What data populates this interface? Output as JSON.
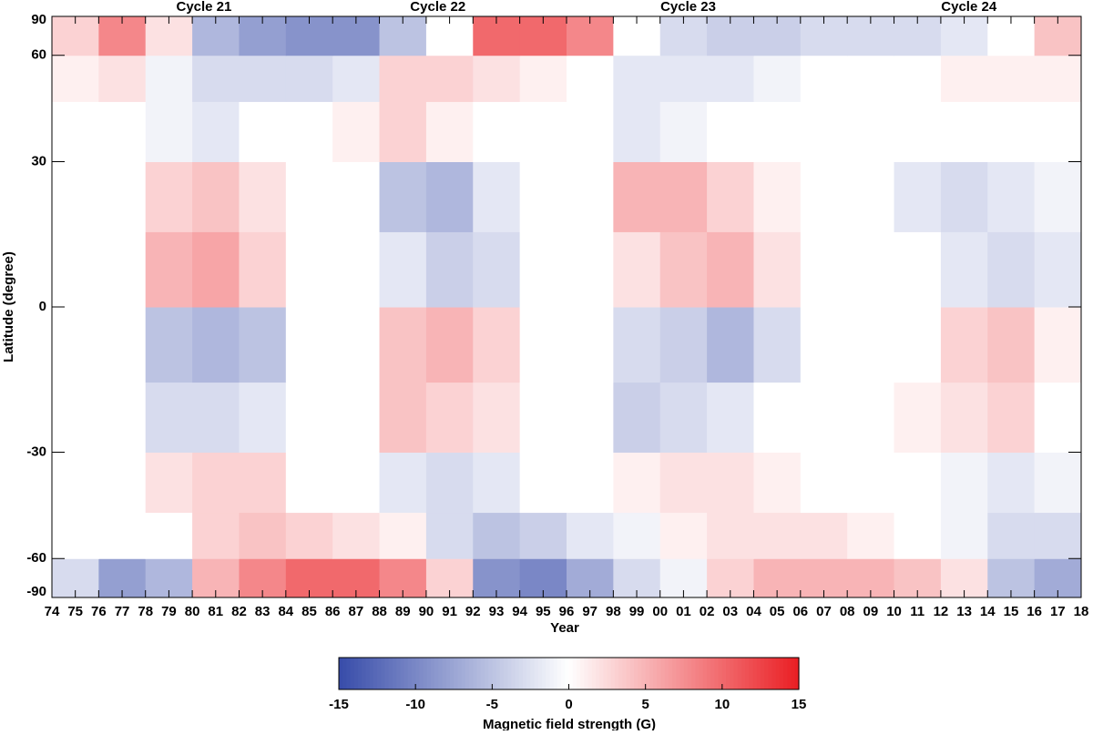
{
  "chart_data": {
    "type": "heatmap",
    "x_label": "Year",
    "y_label": "Latitude (degree)",
    "colorbar_label": "Magnetic field strength (G)",
    "annotations": [
      {
        "text": "Cycle 21",
        "x": 1980.5
      },
      {
        "text": "Cycle 22",
        "x": 1990.5
      },
      {
        "text": "Cycle 23",
        "x": 2001.2
      },
      {
        "text": "Cycle 24",
        "x": 2013.2
      }
    ],
    "xlim": [
      1974,
      2018
    ],
    "xticks": [
      {
        "value": 1974,
        "label": "74"
      },
      {
        "value": 1975,
        "label": "75"
      },
      {
        "value": 1976,
        "label": "76"
      },
      {
        "value": 1977,
        "label": "77"
      },
      {
        "value": 1978,
        "label": "78"
      },
      {
        "value": 1979,
        "label": "79"
      },
      {
        "value": 1980,
        "label": "80"
      },
      {
        "value": 1981,
        "label": "81"
      },
      {
        "value": 1982,
        "label": "82"
      },
      {
        "value": 1983,
        "label": "83"
      },
      {
        "value": 1984,
        "label": "84"
      },
      {
        "value": 1985,
        "label": "85"
      },
      {
        "value": 1986,
        "label": "86"
      },
      {
        "value": 1987,
        "label": "87"
      },
      {
        "value": 1988,
        "label": "88"
      },
      {
        "value": 1989,
        "label": "89"
      },
      {
        "value": 1990,
        "label": "90"
      },
      {
        "value": 1991,
        "label": "91"
      },
      {
        "value": 1992,
        "label": "92"
      },
      {
        "value": 1993,
        "label": "93"
      },
      {
        "value": 1994,
        "label": "94"
      },
      {
        "value": 1995,
        "label": "95"
      },
      {
        "value": 1996,
        "label": "96"
      },
      {
        "value": 1997,
        "label": "97"
      },
      {
        "value": 1998,
        "label": "98"
      },
      {
        "value": 1999,
        "label": "99"
      },
      {
        "value": 2000,
        "label": "00"
      },
      {
        "value": 2001,
        "label": "01"
      },
      {
        "value": 2002,
        "label": "02"
      },
      {
        "value": 2003,
        "label": "03"
      },
      {
        "value": 2004,
        "label": "04"
      },
      {
        "value": 2005,
        "label": "05"
      },
      {
        "value": 2006,
        "label": "06"
      },
      {
        "value": 2007,
        "label": "07"
      },
      {
        "value": 2008,
        "label": "08"
      },
      {
        "value": 2009,
        "label": "09"
      },
      {
        "value": 2010,
        "label": "10"
      },
      {
        "value": 2011,
        "label": "11"
      },
      {
        "value": 2012,
        "label": "12"
      },
      {
        "value": 2013,
        "label": "13"
      },
      {
        "value": 2014,
        "label": "14"
      },
      {
        "value": 2015,
        "label": "15"
      },
      {
        "value": 2016,
        "label": "16"
      },
      {
        "value": 2017,
        "label": "17"
      },
      {
        "value": 2018,
        "label": "18"
      }
    ],
    "ylim": [
      -90,
      90
    ],
    "yscale": "sine",
    "yticks": [
      -90,
      -60,
      -30,
      0,
      30,
      60,
      90
    ],
    "xbins": [
      1974,
      1976,
      1978,
      1980,
      1982,
      1984,
      1986,
      1988,
      1990,
      1992,
      1994,
      1996,
      1998,
      2000,
      2002,
      2004,
      2006,
      2008,
      2010,
      2012,
      2014,
      2016,
      2018
    ],
    "ybins": [
      -90,
      -60,
      -45,
      -30,
      -15,
      0,
      15,
      30,
      45,
      60,
      90
    ],
    "z": [
      [
        -3,
        -8,
        -6,
        5,
        8,
        10,
        10,
        8,
        3,
        -9,
        -10,
        -7,
        -3,
        -1,
        3,
        5,
        5,
        5,
        4,
        2,
        -5,
        -7
      ],
      [
        0,
        0,
        0,
        3,
        4,
        3,
        2,
        1,
        -3,
        -5,
        -4,
        -2,
        -1,
        1,
        2,
        2,
        2,
        1,
        0,
        -1,
        -3,
        -3
      ],
      [
        0,
        0,
        2,
        3,
        3,
        0,
        0,
        -2,
        -3,
        -2,
        0,
        0,
        1,
        2,
        2,
        1,
        0,
        0,
        0,
        -1,
        -2,
        -1
      ],
      [
        0,
        0,
        -3,
        -3,
        -2,
        0,
        0,
        4,
        3,
        2,
        0,
        0,
        -4,
        -3,
        -2,
        0,
        0,
        0,
        1,
        2,
        3,
        0
      ],
      [
        0,
        0,
        -5,
        -6,
        -5,
        0,
        0,
        4,
        5,
        3,
        0,
        0,
        -3,
        -4,
        -6,
        -3,
        0,
        0,
        0,
        3,
        4,
        1
      ],
      [
        0,
        0,
        5,
        6,
        3,
        0,
        0,
        -2,
        -4,
        -3,
        0,
        0,
        2,
        4,
        5,
        2,
        0,
        0,
        0,
        -2,
        -3,
        -2
      ],
      [
        0,
        0,
        3,
        4,
        2,
        0,
        0,
        -5,
        -6,
        -2,
        0,
        0,
        5,
        5,
        3,
        1,
        0,
        0,
        -2,
        -3,
        -2,
        -1
      ],
      [
        0,
        0,
        -1,
        -2,
        0,
        0,
        1,
        3,
        1,
        0,
        0,
        0,
        -2,
        -1,
        0,
        0,
        0,
        0,
        0,
        0,
        0,
        0
      ],
      [
        1,
        2,
        -1,
        -3,
        -3,
        -3,
        -2,
        3,
        3,
        2,
        1,
        0,
        -2,
        -2,
        -2,
        -1,
        0,
        0,
        0,
        1,
        1,
        1
      ],
      [
        3,
        8,
        2,
        -6,
        -8,
        -9,
        -9,
        -5,
        0,
        10,
        10,
        8,
        0,
        -3,
        -4,
        -4,
        -3,
        -3,
        -3,
        -2,
        0,
        4
      ]
    ],
    "zlim": [
      -15,
      15
    ],
    "zticks": [
      -15,
      -10,
      -5,
      0,
      5,
      10,
      15
    ],
    "colors": [
      "#374ba9",
      "#ffffff",
      "#ea1e23"
    ]
  }
}
